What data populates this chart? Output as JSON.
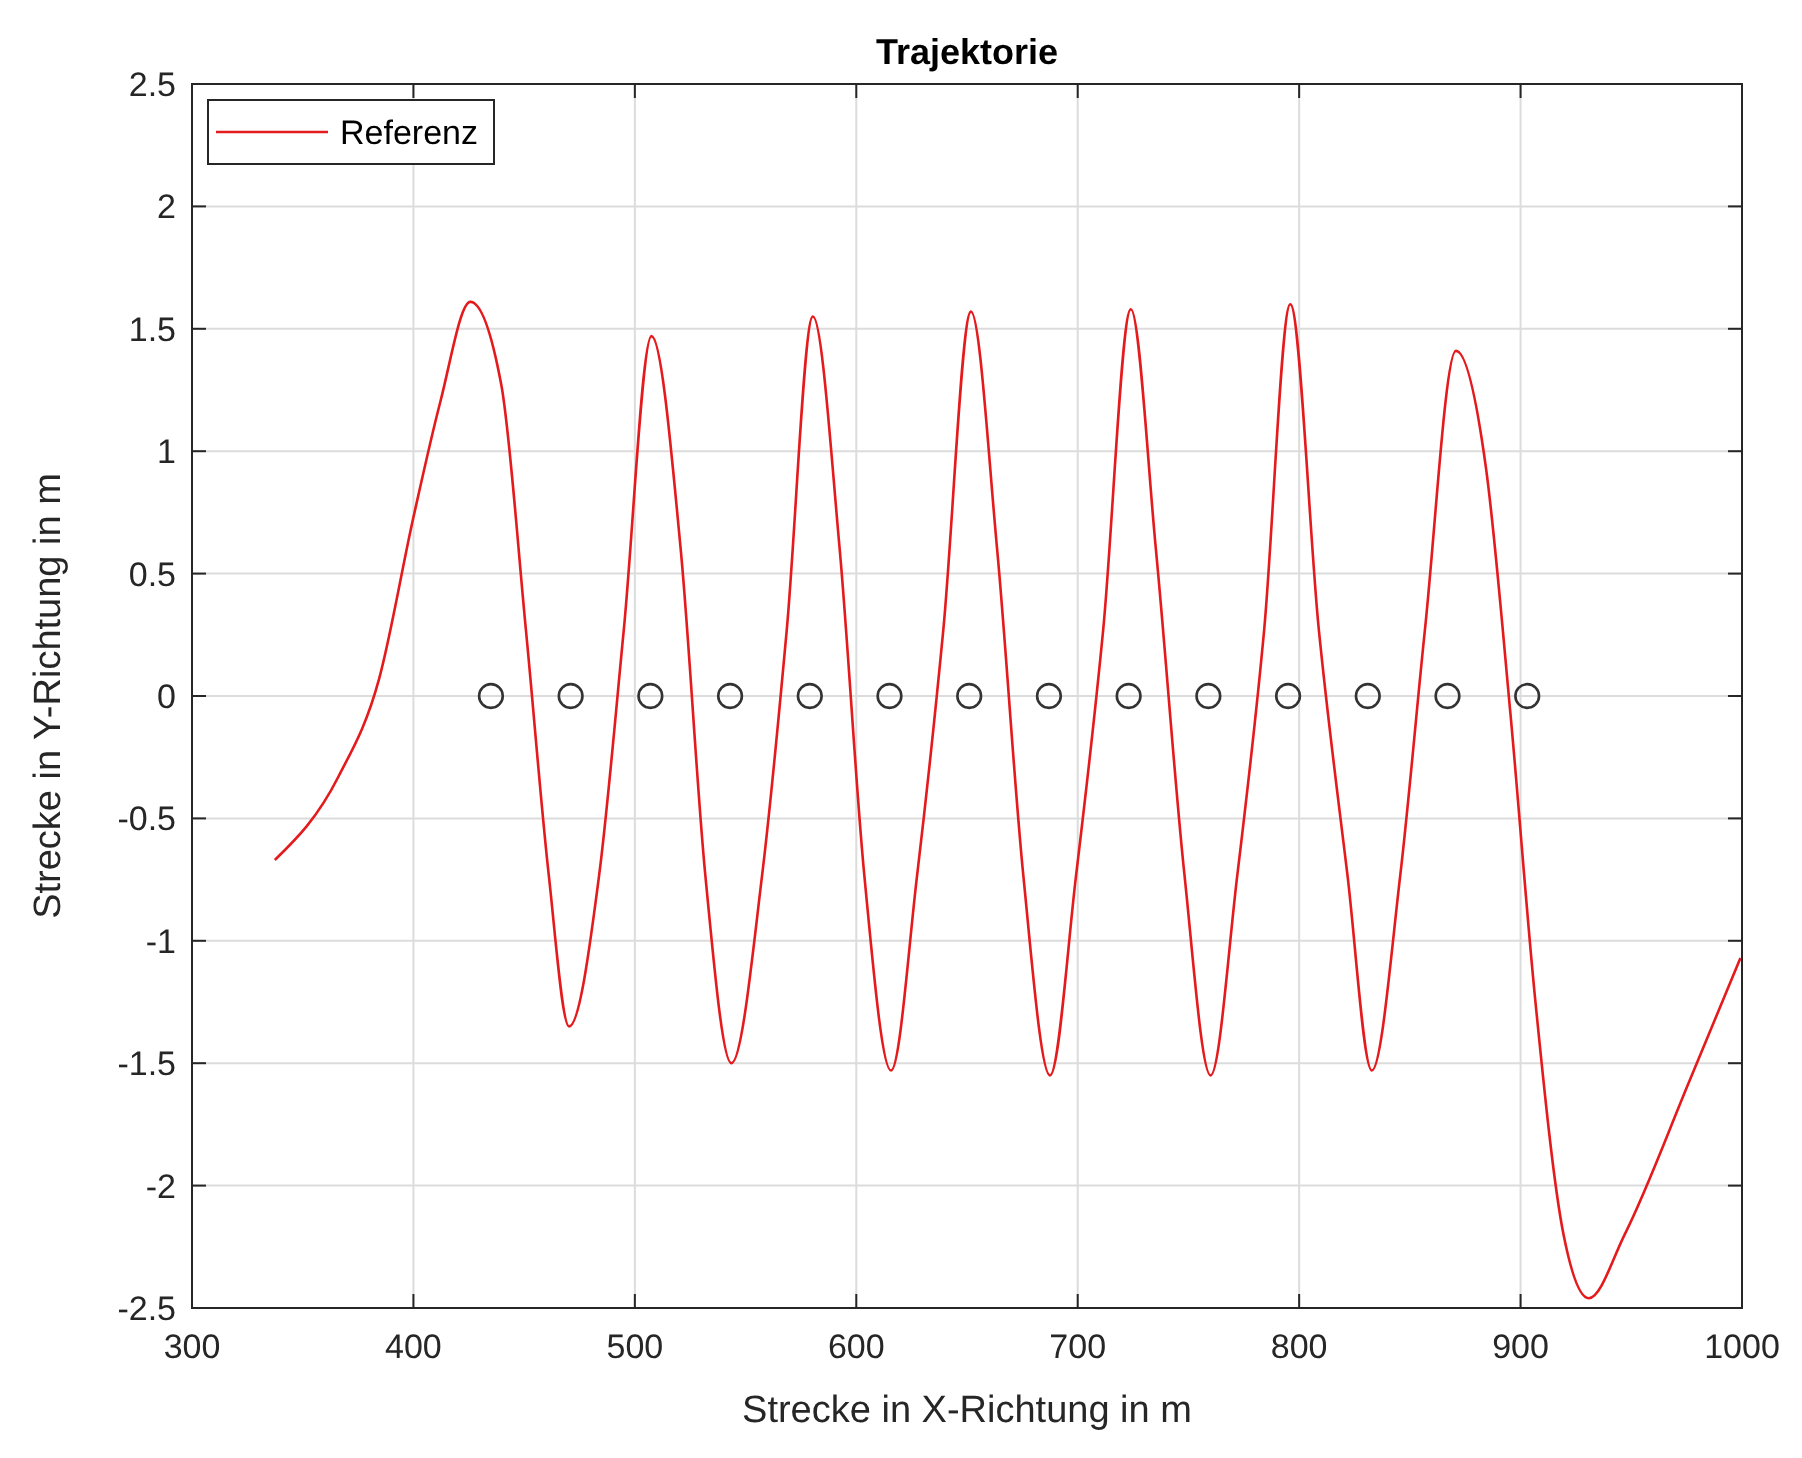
{
  "chart_data": {
    "type": "line",
    "title": "Trajektorie",
    "xlabel": "Strecke in X-Richtung in m",
    "ylabel": "Strecke in Y-Richtung in m",
    "xlim": [
      300,
      1000
    ],
    "xticks": [
      300,
      400,
      500,
      600,
      700,
      800,
      900,
      1000
    ],
    "ylim": [
      -2.5,
      2.5
    ],
    "yticks": [
      -2.5,
      -2,
      -1.5,
      -1,
      -0.5,
      0,
      0.5,
      1,
      1.5,
      2,
      2.5
    ],
    "grid": true,
    "legend": "top left",
    "series": [
      {
        "name": "Referenz",
        "color": "#e41a1c",
        "line_style": "solid",
        "marker": "none",
        "x": [
          337.4,
          366.1,
          384.5,
          400,
          412.1,
          425.7,
          439.7,
          450.8,
          461.1,
          470.3,
          483.9,
          495,
          507.5,
          520.7,
          531.8,
          543.6,
          557.5,
          568.6,
          580.4,
          592.5,
          603.6,
          615.7,
          627.5,
          639.3,
          651.8,
          663.6,
          675.4,
          687.5,
          699.3,
          711.5,
          724,
          735.3,
          748.2,
          760,
          772.1,
          784.2,
          796,
          808.9,
          821.8,
          832.8,
          845.7,
          856.8,
          870.8,
          884.4,
          895.4,
          906.5,
          919.4,
          930.8,
          947,
          976.4,
          999.3
        ],
        "values": [
          -0.67,
          -0.33,
          0.07,
          0.73,
          1.2,
          1.61,
          1.27,
          0.27,
          -0.73,
          -1.35,
          -0.73,
          0.27,
          1.47,
          0.6,
          -0.73,
          -1.5,
          -0.73,
          0.27,
          1.55,
          0.6,
          -0.73,
          -1.53,
          -0.73,
          0.27,
          1.57,
          0.6,
          -0.73,
          -1.55,
          -0.73,
          0.27,
          1.58,
          0.6,
          -0.73,
          -1.55,
          -0.73,
          0.27,
          1.6,
          0.27,
          -0.73,
          -1.53,
          -0.73,
          0.27,
          1.41,
          0.93,
          -0.07,
          -1.23,
          -2.2,
          -2.46,
          -2.2,
          -1.57,
          -1.07
        ]
      },
      {
        "type": "scatter",
        "color": "#333333",
        "marker": "circle",
        "x": [
          435,
          471,
          507,
          543,
          579,
          615,
          651,
          687,
          723,
          759,
          795,
          831,
          867,
          903
        ],
        "values": [
          0,
          0,
          0,
          0,
          0,
          0,
          0,
          0,
          0,
          0,
          0,
          0,
          0,
          0
        ]
      }
    ]
  }
}
